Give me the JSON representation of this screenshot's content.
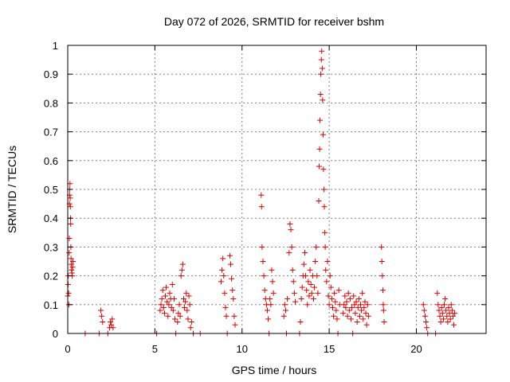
{
  "chart_data": {
    "type": "scatter",
    "title": "Day 072 of 2026, SRMTID for receiver bshm",
    "xlabel": "GPS time / hours",
    "ylabel": "SRMTID / TECUs",
    "xlim": [
      0,
      24
    ],
    "ylim": [
      0,
      1
    ],
    "xticks": [
      0,
      5,
      10,
      15,
      20
    ],
    "xtick_labels": [
      "0",
      "5",
      "10",
      "15",
      "20"
    ],
    "yticks": [
      0,
      0.1,
      0.2,
      0.3,
      0.4,
      0.5,
      0.6,
      0.7,
      0.8,
      0.9,
      1
    ],
    "ytick_labels": [
      "0",
      "0.1",
      "0.2",
      "0.3",
      "0.4",
      "0.5",
      "0.6",
      "0.7",
      "0.8",
      "0.9",
      "1"
    ],
    "grid": true,
    "marker": "+",
    "color": "#e00000",
    "series": [
      {
        "name": "SRMTID",
        "points": [
          [
            0.0,
            0.13
          ],
          [
            0.02,
            0.17
          ],
          [
            0.03,
            0.2
          ],
          [
            0.05,
            0.14
          ],
          [
            0.06,
            0.1
          ],
          [
            0.08,
            0.28
          ],
          [
            0.09,
            0.33
          ],
          [
            0.1,
            0.45
          ],
          [
            0.11,
            0.48
          ],
          [
            0.12,
            0.5
          ],
          [
            0.13,
            0.52
          ],
          [
            0.14,
            0.47
          ],
          [
            0.15,
            0.44
          ],
          [
            0.16,
            0.4
          ],
          [
            0.17,
            0.38
          ],
          [
            0.18,
            0.3
          ],
          [
            0.19,
            0.26
          ],
          [
            0.2,
            0.24
          ],
          [
            0.22,
            0.22
          ],
          [
            0.24,
            0.21
          ],
          [
            0.26,
            0.2
          ],
          [
            0.28,
            0.23
          ],
          [
            0.3,
            0.25
          ],
          [
            1.0,
            0.0
          ],
          [
            1.8,
            0.0
          ],
          [
            1.9,
            0.08
          ],
          [
            1.95,
            0.06
          ],
          [
            2.0,
            0.04
          ],
          [
            2.3,
            0.0
          ],
          [
            2.4,
            0.02
          ],
          [
            2.45,
            0.04
          ],
          [
            2.5,
            0.03
          ],
          [
            2.55,
            0.05
          ],
          [
            2.6,
            0.02
          ],
          [
            5.1,
            0.0
          ],
          [
            5.3,
            0.08
          ],
          [
            5.35,
            0.1
          ],
          [
            5.4,
            0.12
          ],
          [
            5.45,
            0.15
          ],
          [
            5.5,
            0.09
          ],
          [
            5.55,
            0.07
          ],
          [
            5.6,
            0.13
          ],
          [
            5.65,
            0.16
          ],
          [
            5.7,
            0.11
          ],
          [
            5.75,
            0.06
          ],
          [
            5.8,
            0.1
          ],
          [
            5.85,
            0.14
          ],
          [
            5.9,
            0.12
          ],
          [
            5.95,
            0.09
          ],
          [
            6.0,
            0.17
          ],
          [
            6.05,
            0.08
          ],
          [
            6.1,
            0.12
          ],
          [
            6.15,
            0.05
          ],
          [
            6.2,
            0.0
          ],
          [
            6.3,
            0.04
          ],
          [
            6.35,
            0.07
          ],
          [
            6.4,
            0.1
          ],
          [
            6.45,
            0.06
          ],
          [
            6.5,
            0.2
          ],
          [
            6.55,
            0.22
          ],
          [
            6.6,
            0.24
          ],
          [
            6.65,
            0.12
          ],
          [
            6.7,
            0.09
          ],
          [
            6.75,
            0.11
          ],
          [
            6.8,
            0.14
          ],
          [
            6.85,
            0.08
          ],
          [
            6.9,
            0.05
          ],
          [
            6.95,
            0.13
          ],
          [
            7.0,
            0.1
          ],
          [
            7.05,
            0.02
          ],
          [
            7.1,
            0.04
          ],
          [
            7.2,
            0.0
          ],
          [
            7.6,
            0.0
          ],
          [
            8.8,
            0.18
          ],
          [
            8.85,
            0.22
          ],
          [
            8.9,
            0.26
          ],
          [
            8.95,
            0.2
          ],
          [
            9.0,
            0.14
          ],
          [
            9.05,
            0.09
          ],
          [
            9.1,
            0.06
          ],
          [
            9.15,
            0.0
          ],
          [
            9.3,
            0.27
          ],
          [
            9.35,
            0.24
          ],
          [
            9.4,
            0.19
          ],
          [
            9.45,
            0.15
          ],
          [
            9.5,
            0.12
          ],
          [
            9.55,
            0.06
          ],
          [
            9.6,
            0.03
          ],
          [
            11.1,
            0.48
          ],
          [
            11.12,
            0.44
          ],
          [
            11.15,
            0.3
          ],
          [
            11.2,
            0.25
          ],
          [
            11.25,
            0.2
          ],
          [
            11.3,
            0.15
          ],
          [
            11.35,
            0.12
          ],
          [
            11.4,
            0.1
          ],
          [
            11.45,
            0.08
          ],
          [
            11.5,
            0.05
          ],
          [
            11.55,
            0.0
          ],
          [
            11.6,
            0.12
          ],
          [
            11.65,
            0.1
          ],
          [
            11.7,
            0.22
          ],
          [
            11.75,
            0.18
          ],
          [
            11.8,
            0.14
          ],
          [
            12.4,
            0.06
          ],
          [
            12.45,
            0.1
          ],
          [
            12.5,
            0.08
          ],
          [
            12.55,
            0.0
          ],
          [
            12.6,
            0.12
          ],
          [
            12.7,
            0.28
          ],
          [
            12.75,
            0.38
          ],
          [
            12.8,
            0.36
          ],
          [
            12.85,
            0.3
          ],
          [
            12.9,
            0.22
          ],
          [
            12.95,
            0.18
          ],
          [
            13.0,
            0.14
          ],
          [
            13.05,
            0.11
          ],
          [
            13.3,
            0.0
          ],
          [
            13.35,
            0.04
          ],
          [
            13.4,
            0.12
          ],
          [
            13.45,
            0.16
          ],
          [
            13.5,
            0.2
          ],
          [
            13.55,
            0.24
          ],
          [
            13.6,
            0.28
          ],
          [
            13.65,
            0.2
          ],
          [
            13.7,
            0.15
          ],
          [
            13.75,
            0.1
          ],
          [
            13.8,
            0.18
          ],
          [
            13.85,
            0.13
          ],
          [
            13.9,
            0.22
          ],
          [
            13.95,
            0.17
          ],
          [
            14.0,
            0.14
          ],
          [
            14.05,
            0.2
          ],
          [
            14.1,
            0.12
          ],
          [
            14.15,
            0.16
          ],
          [
            14.2,
            0.25
          ],
          [
            14.25,
            0.3
          ],
          [
            14.3,
            0.2
          ],
          [
            14.35,
            0.14
          ],
          [
            14.4,
            0.46
          ],
          [
            14.42,
            0.58
          ],
          [
            14.45,
            0.64
          ],
          [
            14.47,
            0.74
          ],
          [
            14.5,
            0.83
          ],
          [
            14.52,
            0.9
          ],
          [
            14.55,
            0.95
          ],
          [
            14.57,
            0.98
          ],
          [
            14.6,
            0.92
          ],
          [
            14.62,
            0.81
          ],
          [
            14.65,
            0.69
          ],
          [
            14.67,
            0.57
          ],
          [
            14.7,
            0.5
          ],
          [
            14.72,
            0.44
          ],
          [
            14.75,
            0.35
          ],
          [
            14.77,
            0.3
          ],
          [
            14.8,
            0.22
          ],
          [
            14.85,
            0.18
          ],
          [
            14.9,
            0.25
          ],
          [
            14.95,
            0.13
          ],
          [
            15.0,
            0.1
          ],
          [
            15.05,
            0.2
          ],
          [
            15.1,
            0.16
          ],
          [
            15.15,
            0.12
          ],
          [
            15.2,
            0.09
          ],
          [
            15.25,
            0.06
          ],
          [
            15.3,
            0.14
          ],
          [
            15.35,
            0.11
          ],
          [
            15.4,
            0.08
          ],
          [
            15.45,
            0.05
          ],
          [
            15.5,
            0.0
          ],
          [
            15.55,
            0.15
          ],
          [
            15.6,
            0.1
          ],
          [
            15.8,
            0.07
          ],
          [
            15.85,
            0.1
          ],
          [
            15.9,
            0.13
          ],
          [
            15.95,
            0.09
          ],
          [
            16.0,
            0.11
          ],
          [
            16.05,
            0.06
          ],
          [
            16.1,
            0.14
          ],
          [
            16.15,
            0.08
          ],
          [
            16.2,
            0.12
          ],
          [
            16.25,
            0.05
          ],
          [
            16.3,
            0.09
          ],
          [
            16.35,
            0.0
          ],
          [
            16.4,
            0.13
          ],
          [
            16.45,
            0.1
          ],
          [
            16.5,
            0.07
          ],
          [
            16.55,
            0.11
          ],
          [
            16.6,
            0.04
          ],
          [
            16.65,
            0.09
          ],
          [
            16.7,
            0.12
          ],
          [
            16.75,
            0.06
          ],
          [
            16.8,
            0.1
          ],
          [
            16.85,
            0.08
          ],
          [
            16.9,
            0.14
          ],
          [
            16.95,
            0.05
          ],
          [
            17.0,
            0.09
          ],
          [
            17.05,
            0.11
          ],
          [
            17.1,
            0.07
          ],
          [
            17.15,
            0.03
          ],
          [
            17.2,
            0.1
          ],
          [
            17.25,
            0.06
          ],
          [
            18.0,
            0.3
          ],
          [
            18.02,
            0.25
          ],
          [
            18.05,
            0.2
          ],
          [
            18.08,
            0.15
          ],
          [
            18.1,
            0.1
          ],
          [
            18.12,
            0.08
          ],
          [
            18.15,
            0.04
          ],
          [
            20.4,
            0.1
          ],
          [
            20.45,
            0.08
          ],
          [
            20.5,
            0.06
          ],
          [
            20.55,
            0.04
          ],
          [
            20.6,
            0.02
          ],
          [
            20.65,
            0.0
          ],
          [
            21.1,
            0.0
          ],
          [
            21.2,
            0.14
          ],
          [
            21.25,
            0.1
          ],
          [
            21.3,
            0.08
          ],
          [
            21.35,
            0.06
          ],
          [
            21.4,
            0.04
          ],
          [
            21.45,
            0.09
          ],
          [
            21.5,
            0.07
          ],
          [
            21.55,
            0.05
          ],
          [
            21.6,
            0.1
          ],
          [
            21.65,
            0.12
          ],
          [
            21.7,
            0.08
          ],
          [
            21.75,
            0.06
          ],
          [
            21.8,
            0.04
          ],
          [
            21.85,
            0.09
          ],
          [
            21.9,
            0.07
          ],
          [
            21.95,
            0.05
          ],
          [
            22.0,
            0.1
          ],
          [
            22.05,
            0.08
          ],
          [
            22.1,
            0.06
          ],
          [
            22.15,
            0.03
          ],
          [
            22.2,
            0.07
          ]
        ]
      }
    ]
  }
}
